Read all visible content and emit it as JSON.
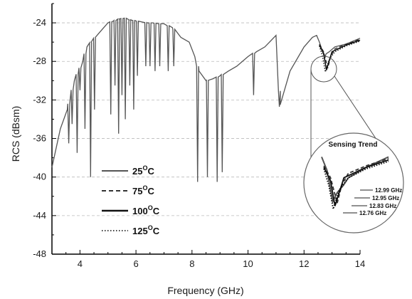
{
  "chart_data": {
    "type": "line",
    "title": "",
    "xlabel": "Frequency (GHz)",
    "ylabel": "RCS (dBsm)",
    "xlim": [
      3,
      14
    ],
    "ylim": [
      -48,
      -22
    ],
    "xticks": [
      4,
      6,
      8,
      10,
      12,
      14
    ],
    "yticks": [
      -48,
      -44,
      -40,
      -36,
      -32,
      -28,
      -24
    ],
    "grid": "dashed horizontal",
    "legend_position": "lower-left",
    "series": [
      {
        "name": "25°C",
        "style": "solid",
        "color": "#555555",
        "x": [
          3.0,
          3.3,
          3.55,
          3.8,
          3.95,
          4.1,
          4.25,
          4.4,
          4.55,
          4.7,
          4.85,
          5.0,
          5.2,
          5.4,
          5.6,
          5.8,
          6.0,
          6.2,
          6.4,
          6.6,
          6.8,
          7.0,
          7.3,
          7.6,
          7.9,
          8.1,
          8.25,
          8.5,
          8.75,
          9.0,
          9.3,
          9.6,
          10.0,
          10.3,
          10.6,
          11.0,
          11.15,
          11.5,
          12.0,
          12.3,
          12.45,
          12.55,
          12.7,
          12.9,
          13.1,
          13.5,
          14.0
        ],
        "y": [
          -39,
          -35,
          -33,
          -30,
          -29,
          -28,
          -26.5,
          -26,
          -25.5,
          -25,
          -24.5,
          -24,
          -23.8,
          -23.6,
          -23.5,
          -23.7,
          -23.8,
          -23.9,
          -24,
          -24,
          -24.1,
          -24.1,
          -24.5,
          -25.5,
          -26,
          -27.5,
          -29,
          -30,
          -29.8,
          -29.5,
          -29,
          -28.5,
          -27.5,
          -27,
          -26.5,
          -25.3,
          -32.5,
          -29,
          -26.5,
          -25.5,
          -25.3,
          -26,
          -27.3,
          -27,
          -26.5,
          -26.2,
          -25.6
        ]
      },
      {
        "name": "75°C",
        "style": "dashed",
        "color": "#333333",
        "x": [
          12.55,
          12.7,
          12.85,
          12.95,
          13.1,
          13.5,
          14.0
        ],
        "y": [
          -26.2,
          -27.0,
          -28.7,
          -27.5,
          -26.7,
          -26.2,
          -25.7
        ]
      },
      {
        "name": "100°C",
        "style": "solid",
        "color": "#111111",
        "x": [
          12.55,
          12.7,
          12.8,
          12.83,
          13.0,
          13.5,
          14.0
        ],
        "y": [
          -26.3,
          -27.2,
          -28.9,
          -28.6,
          -27.0,
          -26.3,
          -25.8
        ]
      },
      {
        "name": "125°C",
        "style": "dotted",
        "color": "#000000",
        "x": [
          12.55,
          12.66,
          12.76,
          12.9,
          13.1,
          13.5,
          14.0
        ],
        "y": [
          -26.4,
          -27.5,
          -29.1,
          -27.8,
          -27.0,
          -26.4,
          -25.9
        ]
      }
    ],
    "inset": {
      "title": "Sensing Trend",
      "annotations": [
        "12.99 GHz",
        "12.95 GHz",
        "12.83 GHz",
        "12.76 GHz"
      ]
    }
  },
  "legend": {
    "items": [
      {
        "value": "25",
        "unit_sup": "O",
        "unit": "C",
        "style": "solid"
      },
      {
        "value": "75",
        "unit_sup": "O",
        "unit": "C",
        "style": "dashed"
      },
      {
        "value": "100",
        "unit_sup": "O",
        "unit": "C",
        "style": "solid-bold"
      },
      {
        "value": "125",
        "unit_sup": "O",
        "unit": "C",
        "style": "dotted"
      }
    ]
  }
}
